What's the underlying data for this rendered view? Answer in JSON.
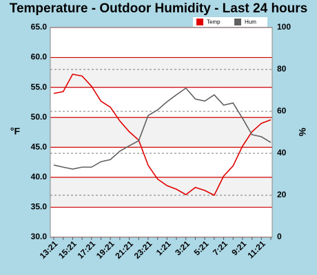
{
  "chart_data": {
    "type": "line",
    "title": "Temperature - Outdoor Humidity - Last 24 hours",
    "y_label": "°F",
    "y2_label": "%",
    "categories": [
      "13:21",
      null,
      "15:21",
      null,
      "17:21",
      null,
      "19:21",
      null,
      "21:21",
      null,
      "23:21",
      null,
      "1:21",
      null,
      "3:21",
      null,
      "5:21",
      null,
      "7:21",
      null,
      "9:21",
      null,
      "11:21",
      null
    ],
    "series": [
      {
        "name": "Temp",
        "color": "#e00000",
        "values": [
          54.0,
          54.3,
          57.2,
          56.9,
          55.2,
          52.7,
          51.7,
          49.4,
          47.6,
          46.2,
          42.0,
          39.7,
          38.6,
          38.0,
          37.1,
          38.3,
          37.8,
          37.0,
          40.2,
          41.9,
          45.2,
          47.6,
          49.0,
          49.6
        ]
      },
      {
        "name": "Hum",
        "color": "#606060",
        "axis": "y2",
        "values": [
          34.4,
          33.4,
          32.5,
          33.4,
          33.4,
          36,
          37,
          41,
          43.6,
          46,
          58,
          60.7,
          64.6,
          67.9,
          71.1,
          65.9,
          64.9,
          67.9,
          63,
          64,
          56.7,
          48.9,
          47.9,
          45.2
        ]
      }
    ],
    "ylim": [
      30,
      65
    ],
    "yticks": [
      {
        "value": 30,
        "label": "30.0"
      },
      {
        "value": 35,
        "label": "35.0"
      },
      {
        "value": 40,
        "label": "40.0"
      },
      {
        "value": 45,
        "label": "45.0"
      },
      {
        "value": 50,
        "label": "50.0"
      },
      {
        "value": 55,
        "label": "55.0"
      },
      {
        "value": 60,
        "label": "60.0"
      },
      {
        "value": 65,
        "label": "65.0"
      }
    ],
    "y2lim": [
      0,
      100
    ],
    "y2ticks": [
      0,
      20,
      40,
      60,
      80,
      100
    ],
    "grid": true
  }
}
